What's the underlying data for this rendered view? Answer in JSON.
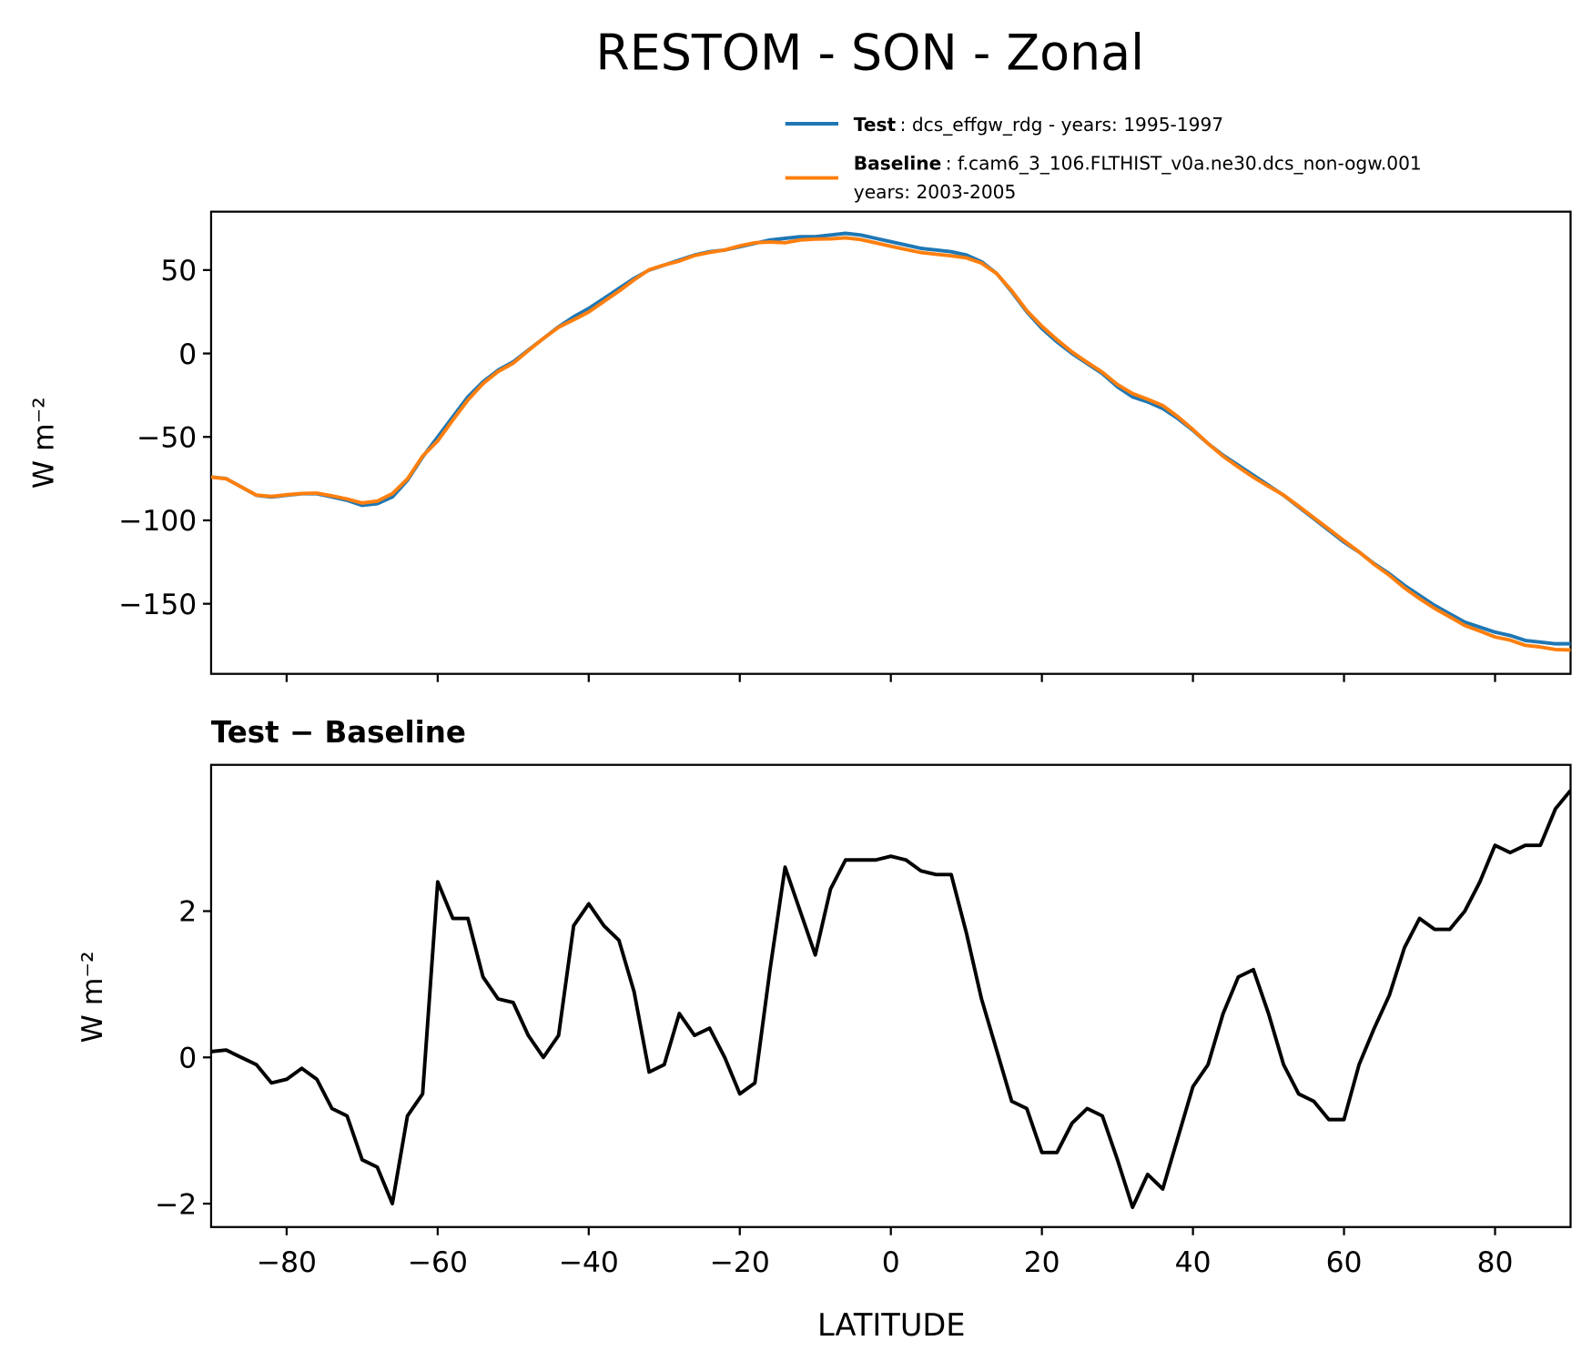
{
  "chart_data": [
    {
      "type": "line",
      "title": "RESTOM - SON - Zonal",
      "ylabel": "W m⁻²",
      "x": [
        -90,
        -88,
        -86,
        -84,
        -82,
        -80,
        -78,
        -76,
        -74,
        -72,
        -70,
        -68,
        -66,
        -64,
        -62,
        -60,
        -58,
        -56,
        -54,
        -52,
        -50,
        -48,
        -46,
        -44,
        -42,
        -40,
        -38,
        -36,
        -34,
        -32,
        -30,
        -28,
        -26,
        -24,
        -22,
        -20,
        -18,
        -16,
        -14,
        -12,
        -10,
        -8,
        -6,
        -4,
        -2,
        0,
        2,
        4,
        6,
        8,
        10,
        12,
        14,
        16,
        18,
        20,
        22,
        24,
        26,
        28,
        30,
        32,
        34,
        36,
        38,
        40,
        42,
        44,
        46,
        48,
        50,
        52,
        54,
        56,
        58,
        60,
        62,
        64,
        66,
        68,
        70,
        72,
        74,
        76,
        78,
        80,
        82,
        84,
        86,
        88,
        90
      ],
      "series": [
        {
          "name": "Test",
          "detail": [
            ": dcs_effgw_rdg - years: 1995-1997"
          ],
          "color": "#1f77b4",
          "values": [
            -74,
            -75,
            -80,
            -85,
            -86,
            -85,
            -84,
            -84,
            -86,
            -88,
            -91,
            -90,
            -86,
            -76,
            -62,
            -50,
            -38,
            -26,
            -17,
            -10,
            -5,
            2,
            9,
            16,
            22,
            27,
            33,
            39,
            45,
            50,
            53,
            56,
            59,
            61,
            62,
            64,
            66,
            68,
            69,
            70,
            70,
            71,
            72,
            71,
            69,
            67,
            65,
            63,
            62,
            61,
            59,
            55,
            48,
            37,
            25,
            15,
            7,
            0,
            -6,
            -12,
            -20,
            -26,
            -29,
            -33,
            -39,
            -46,
            -54,
            -61,
            -67,
            -73,
            -79,
            -85,
            -92,
            -99,
            -106,
            -113,
            -119,
            -126,
            -132,
            -139,
            -145,
            -151,
            -156,
            -161,
            -164,
            -167,
            -169,
            -172,
            -173,
            -174,
            -174
          ]
        },
        {
          "name": "Baseline",
          "detail": [
            ": f.cam6_3_106.FLTHIST_v0a.ne30.dcs_non-ogw.001",
            "years: 2003-2005"
          ],
          "color": "#ff7f0e",
          "values": [
            -74.1,
            -75.1,
            -80,
            -84.9,
            -85.7,
            -84.7,
            -83.9,
            -83.7,
            -85.3,
            -87.2,
            -89.6,
            -88.5,
            -84,
            -75.2,
            -61.5,
            -52.4,
            -39.9,
            -27.9,
            -18.1,
            -10.8,
            -5.8,
            1.7,
            9,
            15.7,
            20.2,
            24.9,
            31.2,
            37.4,
            44.1,
            50.2,
            53.1,
            55.4,
            58.7,
            60.6,
            62,
            64.5,
            66.4,
            66.8,
            66.4,
            68,
            68.6,
            68.7,
            69.3,
            68.3,
            66.3,
            64.3,
            62.3,
            60.5,
            59.5,
            58.5,
            57.3,
            54.2,
            47.9,
            37.6,
            25.7,
            16.3,
            8.3,
            0.9,
            -5.3,
            -11.2,
            -18.6,
            -24,
            -27.4,
            -31.2,
            -37.9,
            -45.6,
            -53.9,
            -61.6,
            -68.1,
            -74.2,
            -79.6,
            -84.9,
            -91.5,
            -98.4,
            -105.2,
            -112.2,
            -118.9,
            -126.4,
            -132.9,
            -140.5,
            -146.9,
            -152.8,
            -157.8,
            -163,
            -166.4,
            -169.9,
            -171.8,
            -174.9,
            -175.9,
            -177.4,
            -177.7
          ]
        }
      ],
      "xlim": [
        -90,
        90
      ],
      "ylim": [
        -192,
        85
      ],
      "xticks": [
        -80,
        -60,
        -40,
        -20,
        0,
        20,
        40,
        60,
        80
      ],
      "yticks": [
        {
          "value": 50,
          "label": "50"
        },
        {
          "value": 0,
          "label": "0"
        },
        {
          "value": -50,
          "label": "−50"
        },
        {
          "value": -100,
          "label": "−100"
        },
        {
          "value": -150,
          "label": "−150"
        }
      ]
    },
    {
      "type": "line",
      "title": "Test − Baseline",
      "xlabel": "LATITUDE",
      "ylabel": "W m⁻²",
      "x": [
        -90,
        -88,
        -86,
        -84,
        -82,
        -80,
        -78,
        -76,
        -74,
        -72,
        -70,
        -68,
        -66,
        -64,
        -62,
        -60,
        -58,
        -56,
        -54,
        -52,
        -50,
        -48,
        -46,
        -44,
        -42,
        -40,
        -38,
        -36,
        -34,
        -32,
        -30,
        -28,
        -26,
        -24,
        -22,
        -20,
        -18,
        -16,
        -14,
        -12,
        -10,
        -8,
        -6,
        -4,
        -2,
        0,
        2,
        4,
        6,
        8,
        10,
        12,
        14,
        16,
        18,
        20,
        22,
        24,
        26,
        28,
        30,
        32,
        34,
        36,
        38,
        40,
        42,
        44,
        46,
        48,
        50,
        52,
        54,
        56,
        58,
        60,
        62,
        64,
        66,
        68,
        70,
        72,
        74,
        76,
        78,
        80,
        82,
        84,
        86,
        88,
        90
      ],
      "series": [
        {
          "color": "#000000",
          "values": [
            0.08,
            0.1,
            0,
            -0.1,
            -0.35,
            -0.3,
            -0.15,
            -0.3,
            -0.7,
            -0.8,
            -1.4,
            -1.5,
            -2.0,
            -0.8,
            -0.5,
            2.4,
            1.9,
            1.9,
            1.1,
            0.8,
            0.75,
            0.3,
            0,
            0.3,
            1.8,
            2.1,
            1.8,
            1.6,
            0.9,
            -0.2,
            -0.1,
            0.6,
            0.3,
            0.4,
            0,
            -0.5,
            -0.35,
            1.2,
            2.6,
            2.0,
            1.4,
            2.3,
            2.7,
            2.7,
            2.7,
            2.75,
            2.7,
            2.55,
            2.5,
            2.5,
            1.7,
            0.8,
            0.1,
            -0.6,
            -0.7,
            -1.3,
            -1.3,
            -0.9,
            -0.7,
            -0.8,
            -1.4,
            -2.05,
            -1.6,
            -1.8,
            -1.1,
            -0.4,
            -0.1,
            0.6,
            1.1,
            1.2,
            0.6,
            -0.1,
            -0.5,
            -0.6,
            -0.85,
            -0.85,
            -0.1,
            0.4,
            0.85,
            1.5,
            1.9,
            1.75,
            1.75,
            2.0,
            2.4,
            2.9,
            2.8,
            2.9,
            2.9,
            3.4,
            3.65
          ]
        }
      ],
      "xlim": [
        -90,
        90
      ],
      "ylim": [
        -2.32,
        4.0
      ],
      "xticks": [
        {
          "value": -80,
          "label": "−80"
        },
        {
          "value": -60,
          "label": "−60"
        },
        {
          "value": -40,
          "label": "−40"
        },
        {
          "value": -20,
          "label": "−20"
        },
        {
          "value": 0,
          "label": "0"
        },
        {
          "value": 20,
          "label": "20"
        },
        {
          "value": 40,
          "label": "40"
        },
        {
          "value": 60,
          "label": "60"
        },
        {
          "value": 80,
          "label": "80"
        }
      ],
      "yticks": [
        {
          "value": 2,
          "label": "2"
        },
        {
          "value": 0,
          "label": "0"
        },
        {
          "value": -2,
          "label": "−2"
        }
      ]
    }
  ]
}
